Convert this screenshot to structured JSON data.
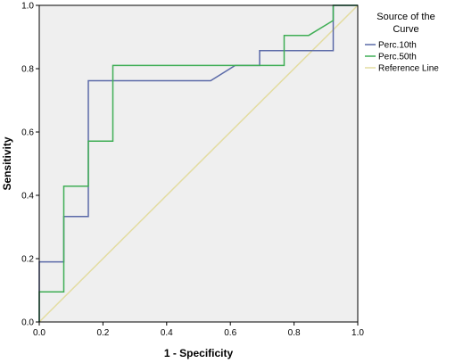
{
  "chart_data": {
    "type": "line",
    "title": "",
    "xlabel": "1 - Specificity",
    "ylabel": "Sensitivity",
    "xlim": [
      0,
      1
    ],
    "ylim": [
      0,
      1
    ],
    "x_ticks": [
      "0.0",
      "0.2",
      "0.4",
      "0.6",
      "0.8",
      "1.0"
    ],
    "y_ticks": [
      "0.0",
      "0.2",
      "0.4",
      "0.6",
      "0.8",
      "1.0"
    ],
    "grid": false,
    "legend_position": "top-right, outside plot",
    "legend_title": "Source of the Curve",
    "plot_background": "#efefef",
    "series": [
      {
        "name": "Perc.10th",
        "color": "#5b6aa8",
        "x": [
          0,
          0,
          0.077,
          0.077,
          0.154,
          0.154,
          0.538,
          0.615,
          0.692,
          0.692,
          0.923,
          0.923,
          1.0
        ],
        "y": [
          0,
          0.19,
          0.19,
          0.333,
          0.333,
          0.762,
          0.762,
          0.81,
          0.81,
          0.857,
          0.857,
          1.0,
          1.0
        ]
      },
      {
        "name": "Perc.50th",
        "color": "#3fae55",
        "x": [
          0,
          0,
          0.077,
          0.077,
          0.154,
          0.154,
          0.231,
          0.231,
          0.769,
          0.769,
          0.846,
          0.923,
          0.923,
          1.0
        ],
        "y": [
          0,
          0.095,
          0.095,
          0.429,
          0.429,
          0.571,
          0.571,
          0.81,
          0.81,
          0.905,
          0.905,
          0.952,
          1.0,
          1.0
        ]
      },
      {
        "name": "Reference Line",
        "color": "#e3dca0",
        "x": [
          0,
          1
        ],
        "y": [
          0,
          1
        ]
      }
    ]
  }
}
